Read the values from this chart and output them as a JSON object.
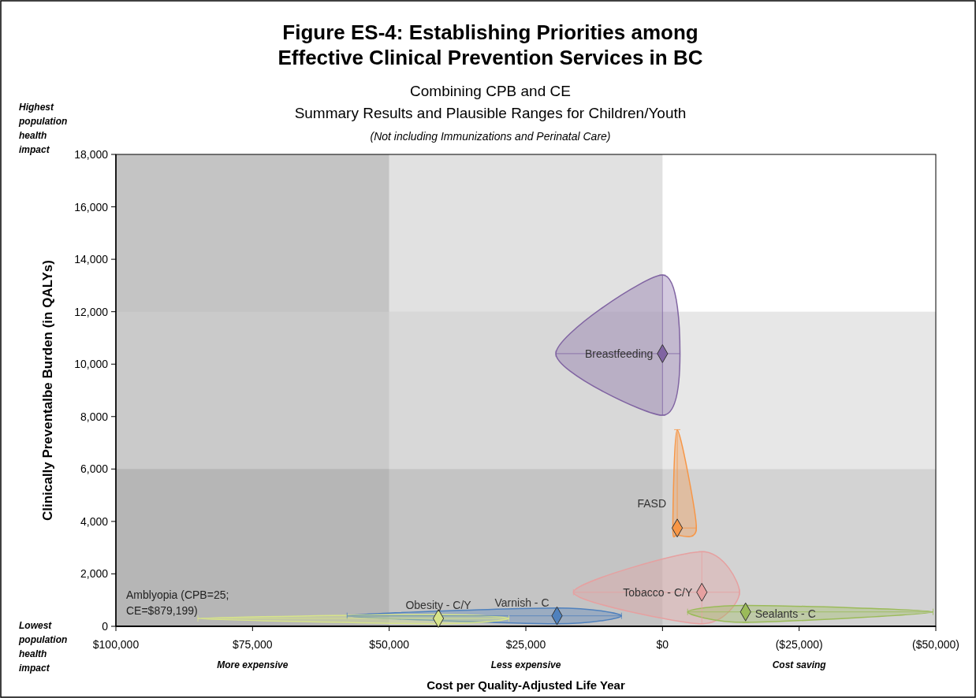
{
  "chart_data": {
    "type": "scatter",
    "title": "Figure ES-4: Establishing Priorities among\nEffective Clinical Prevention Services in BC",
    "subtitle": "Combining CPB and CE\nSummary Results and Plausible Ranges for Children/Youth",
    "xlabel": "Cost per Quality-Adjusted Life Year",
    "ylabel": "Clinically Preventalbe Burden (in QALYs)",
    "annotations": [
      "(Not including Immunizations and Perinatal Care)",
      "Highest\npopulation\nhealth\nimpact",
      "Lowest\npopulation\nhealth\nimpact",
      "More expensive",
      "Less expensive",
      "Cost  saving",
      "Amblyopia (CPB=25;\nCE=$879,199)"
    ],
    "xlim": [
      100000,
      -50000
    ],
    "xticks": [
      {
        "value": 100000,
        "label": "$100,000"
      },
      {
        "value": 75000,
        "label": "$75,000"
      },
      {
        "value": 50000,
        "label": "$50,000"
      },
      {
        "value": 25000,
        "label": "$25,000"
      },
      {
        "value": 0,
        "label": "$0"
      },
      {
        "value": -25000,
        "label": "($25,000)"
      },
      {
        "value": -50000,
        "label": "($50,000)"
      }
    ],
    "ylim": [
      0,
      18000
    ],
    "yticks": [
      0,
      {
        "value": 2000,
        "label": "2,000"
      },
      {
        "value": 4000,
        "label": "4,000"
      },
      {
        "value": 6000,
        "label": "6,000"
      },
      {
        "value": 8000,
        "label": "8,000"
      },
      {
        "value": 10000,
        "label": "10,000"
      },
      {
        "value": 12000,
        "label": "12,000"
      },
      {
        "value": 14000,
        "label": "14,000"
      },
      {
        "value": 16000,
        "label": "16,000"
      },
      {
        "value": 18000,
        "label": "18,000"
      }
    ],
    "marker": "diamond",
    "grid": false,
    "bands": [
      {
        "axis": "x",
        "from": 100000,
        "to": 50000,
        "color": "#8a8a8a"
      },
      {
        "axis": "x",
        "from": 50000,
        "to": 0,
        "color": "#c4c4c4"
      },
      {
        "axis": "y",
        "from": 0,
        "to": 6000,
        "color": "#a8a8a8"
      },
      {
        "axis": "y",
        "from": 6000,
        "to": 12000,
        "color": "#cfcfcf"
      }
    ],
    "series": [
      {
        "name": "Breastfeeding",
        "color": "#8064a2",
        "x": [
          0
        ],
        "values": [
          10400
        ],
        "xerrors": [
          [
            19500,
            -3200
          ]
        ],
        "errors": [
          [
            8050,
            13400
          ]
        ]
      },
      {
        "name": "FASD",
        "color": "#f79646",
        "x": [
          -2700
        ],
        "values": [
          3750
        ],
        "xerrors": [
          [
            -1900,
            -6200
          ]
        ],
        "errors": [
          [
            3480,
            7500
          ]
        ]
      },
      {
        "name": "Tobacco - C/Y",
        "color": "#e6a0a0",
        "x": [
          -7200
        ],
        "values": [
          1300
        ],
        "xerrors": [
          [
            16300,
            -14100
          ]
        ],
        "errors": [
          [
            100,
            2850
          ]
        ]
      },
      {
        "name": "Sealants - C",
        "color": "#9bbb59",
        "x": [
          -15200
        ],
        "values": [
          550
        ],
        "xerrors": [
          [
            -4600,
            -49500
          ]
        ],
        "errors": [
          [
            150,
            800
          ]
        ]
      },
      {
        "name": "Varnish - C",
        "color": "#4f81bd",
        "x": [
          19300
        ],
        "values": [
          400
        ],
        "xerrors": [
          [
            57700,
            7500
          ]
        ],
        "errors": [
          [
            100,
            700
          ]
        ]
      },
      {
        "name": "Obesity - C/Y",
        "color": "#d7e48a",
        "x": [
          41000
        ],
        "values": [
          300
        ],
        "xerrors": [
          [
            85000,
            28100
          ]
        ],
        "errors": [
          [
            100,
            450
          ]
        ]
      }
    ]
  }
}
